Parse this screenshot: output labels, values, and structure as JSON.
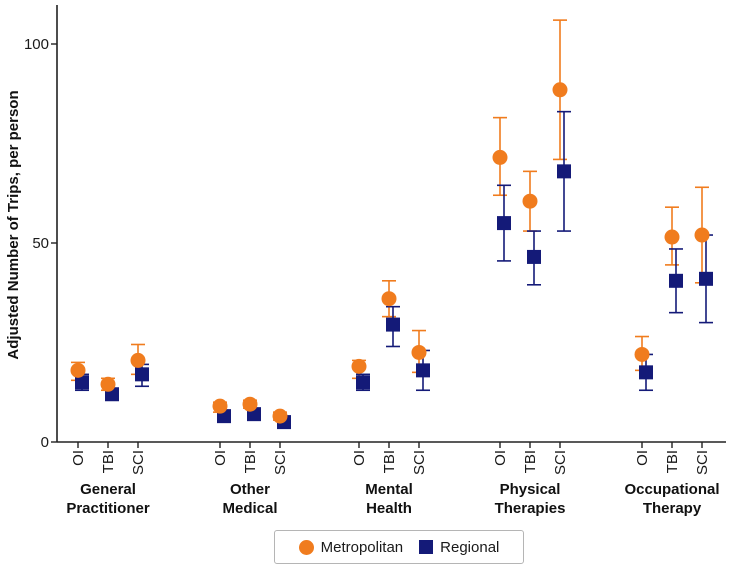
{
  "chart_data": {
    "type": "scatter",
    "ylabel": "Adjusted Number of Trips, per person",
    "ylim": [
      0,
      110
    ],
    "yticks": [
      0,
      50,
      100
    ],
    "groups": [
      {
        "name": "General\nPractitioner",
        "categories": [
          "OI",
          "TBI",
          "SCI"
        ]
      },
      {
        "name": "Other\nMedical",
        "categories": [
          "OI",
          "TBI",
          "SCI"
        ]
      },
      {
        "name": "Mental\nHealth",
        "categories": [
          "OI",
          "TBI",
          "SCI"
        ]
      },
      {
        "name": "Physical\nTherapies",
        "categories": [
          "OI",
          "TBI",
          "SCI"
        ]
      },
      {
        "name": "Occupational\nTherapy",
        "categories": [
          "OI",
          "TBI",
          "SCI"
        ]
      }
    ],
    "series": [
      {
        "name": "Metropolitan",
        "marker": "circle",
        "color": "#f07c1e",
        "values": [
          18,
          14.5,
          20.5,
          9,
          9.5,
          6.5,
          19,
          36,
          22.5,
          71.5,
          60.5,
          88.5,
          22,
          51.5,
          52
        ],
        "lower": [
          15.5,
          13,
          17,
          7.5,
          8.5,
          5.5,
          16,
          31.5,
          17.5,
          62,
          53,
          71,
          18,
          44.5,
          40
        ],
        "upper": [
          20,
          16,
          24.5,
          10,
          10.5,
          7.5,
          20.5,
          40.5,
          28,
          81.5,
          68,
          106,
          26.5,
          59,
          64
        ]
      },
      {
        "name": "Regional",
        "marker": "square",
        "color": "#141a78",
        "values": [
          15,
          12,
          17,
          6.5,
          7,
          5,
          15,
          29.5,
          18,
          55,
          46.5,
          68,
          17.5,
          40.5,
          41
        ],
        "lower": [
          13,
          11,
          14,
          5.5,
          5.5,
          4,
          13,
          24,
          13,
          45.5,
          39.5,
          53,
          13,
          32.5,
          30
        ],
        "upper": [
          17,
          13,
          19.5,
          7.5,
          8,
          6,
          17,
          34,
          23,
          64.5,
          53,
          83,
          22,
          48.5,
          52
        ]
      }
    ]
  }
}
